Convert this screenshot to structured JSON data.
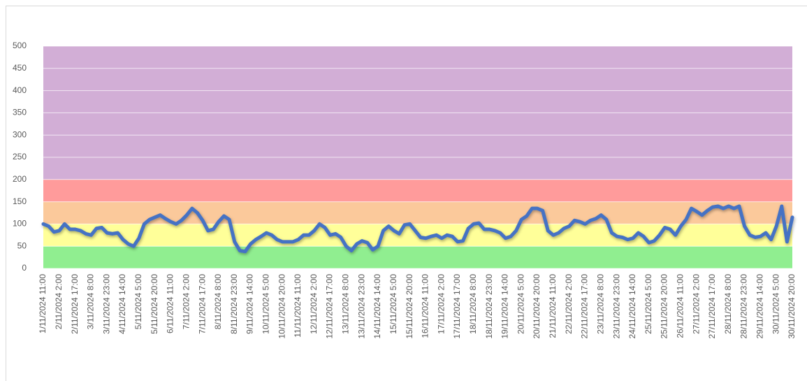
{
  "chart_data": {
    "type": "line",
    "categories": [
      "1/11/2024 11:00",
      null,
      null,
      "2/11/2024 2:00",
      null,
      null,
      "2/11/2024 17:00",
      null,
      null,
      "3/11/2024 8:00",
      null,
      null,
      "3/11/2024 23:00",
      null,
      null,
      "4/11/2024 14:00",
      null,
      null,
      "5/11/2024 5:00",
      null,
      null,
      "5/11/2024 20:00",
      null,
      null,
      "6/11/2024 11:00",
      null,
      null,
      "7/11/2024 2:00",
      null,
      null,
      "7/11/2024 17:00",
      null,
      null,
      "8/11/2024 8:00",
      null,
      null,
      "8/11/2024 23:00",
      null,
      null,
      "9/11/2024 14:00",
      null,
      null,
      "10/11/2024 5:00",
      null,
      null,
      "10/11/2024 20:00",
      null,
      null,
      "11/11/2024 11:00",
      null,
      null,
      "12/11/2024 2:00",
      null,
      null,
      "12/11/2024 17:00",
      null,
      null,
      "13/11/2024 8:00",
      null,
      null,
      "13/11/2024 23:00",
      null,
      null,
      "14/11/2024 14:00",
      null,
      null,
      "15/11/2024 5:00",
      null,
      null,
      "15/11/2024 20:00",
      null,
      null,
      "16/11/2024 11:00",
      null,
      null,
      "17/11/2024 2:00",
      null,
      null,
      "17/11/2024 17:00",
      null,
      null,
      "18/11/2024 8:00",
      null,
      null,
      "18/11/2024 23:00",
      null,
      null,
      "19/11/2024 14:00",
      null,
      null,
      "20/11/2024 5:00",
      null,
      null,
      "20/11/2024 20:00",
      null,
      null,
      "21/11/2024 11:00",
      null,
      null,
      "22/11/2024 2:00",
      null,
      null,
      "22/11/2024 17:00",
      null,
      null,
      "23/11/2024 8:00",
      null,
      null,
      "23/11/2024 23:00",
      null,
      null,
      "24/11/2024 14:00",
      null,
      null,
      "25/11/2024 5:00",
      null,
      null,
      "25/11/2024 20:00",
      null,
      null,
      "26/11/2024 11:00",
      null,
      null,
      "27/11/2024 2:00",
      null,
      null,
      "27/11/2024 17:00",
      null,
      null,
      "28/11/2024 8:00",
      null,
      null,
      "28/11/2024 23:00",
      null,
      null,
      "29/11/2024 14:00",
      null,
      null,
      "30/11/2024 5:00",
      null,
      null,
      "30/11/2024 20:00"
    ],
    "series": [
      {
        "color": "#4472c4",
        "values": [
          100,
          95,
          82,
          85,
          100,
          88,
          88,
          85,
          78,
          75,
          90,
          92,
          80,
          78,
          80,
          65,
          55,
          50,
          68,
          100,
          110,
          115,
          120,
          112,
          105,
          100,
          108,
          120,
          135,
          125,
          108,
          85,
          88,
          105,
          118,
          110,
          60,
          40,
          38,
          55,
          65,
          72,
          80,
          75,
          65,
          60,
          60,
          60,
          65,
          75,
          75,
          85,
          100,
          92,
          75,
          78,
          70,
          50,
          40,
          55,
          62,
          58,
          42,
          50,
          85,
          95,
          85,
          78,
          98,
          100,
          85,
          70,
          68,
          72,
          75,
          68,
          75,
          72,
          60,
          62,
          90,
          100,
          102,
          88,
          88,
          85,
          80,
          68,
          72,
          85,
          110,
          118,
          135,
          135,
          130,
          85,
          75,
          80,
          90,
          95,
          108,
          105,
          100,
          108,
          112,
          120,
          110,
          80,
          72,
          70,
          65,
          68,
          80,
          72,
          58,
          62,
          75,
          92,
          88,
          75,
          95,
          110,
          135,
          128,
          120,
          130,
          138,
          140,
          135,
          140,
          135,
          140,
          95,
          75,
          70,
          72,
          80,
          65,
          95,
          140,
          60,
          115
        ]
      }
    ],
    "bands": [
      {
        "from": 0,
        "to": 50,
        "color": "#90ee90"
      },
      {
        "from": 50,
        "to": 100,
        "color": "#ffff99"
      },
      {
        "from": 100,
        "to": 150,
        "color": "#fbc99b"
      },
      {
        "from": 150,
        "to": 200,
        "color": "#ff9b9b"
      },
      {
        "from": 200,
        "to": 500,
        "color": "#d2aed6"
      }
    ],
    "ylim": [
      0,
      500
    ],
    "yticks": [
      0,
      50,
      100,
      150,
      200,
      250,
      300,
      350,
      400,
      450,
      500
    ],
    "grid": true
  }
}
